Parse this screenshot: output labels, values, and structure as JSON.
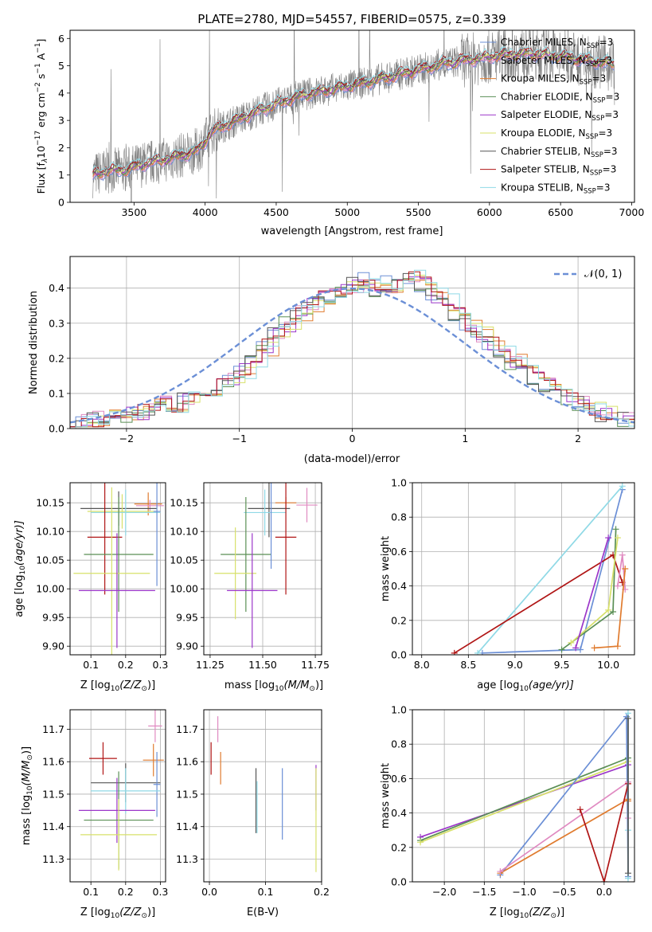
{
  "figure": {
    "title": "PLATE=2780, MJD=54557, FIBERID=0575, z=0.339"
  },
  "colors": {
    "Chabrier MILES": "#6b8fd6",
    "Salpeter MILES": "#e08ac1",
    "Kroupa MILES": "#e07b2e",
    "Chabrier ELODIE": "#5a8f55",
    "Salpeter ELODIE": "#9b36c9",
    "Kroupa ELODIE": "#d7e06a",
    "Chabrier STELIB": "#555555",
    "Salpeter STELIB": "#b01515",
    "Kroupa STELIB": "#8fd9e6",
    "data": "#7f7f7f",
    "gaussian": "#6b8fd6"
  },
  "chart_data": [
    {
      "id": "spectrum",
      "type": "line",
      "title": "PLATE=2780, MJD=54557, FIBERID=0575, z=0.339",
      "xlabel": "wavelength [Angstrom, rest frame]",
      "ylabel_main": "Flux [f",
      "ylabel_sub1": "λ",
      "ylabel_mid": "10",
      "ylabel_sup1": "−17",
      "ylabel_rest1": " erg cm",
      "ylabel_sup2": "−2",
      "ylabel_rest2": " s",
      "ylabel_sup3": "−1",
      "ylabel_rest3": " A",
      "ylabel_sup4": "−1",
      "ylabel_end": "]",
      "xlim": [
        3050,
        7020
      ],
      "ylim": [
        0,
        6.3
      ],
      "xticks": [
        3500,
        4000,
        4500,
        5000,
        5500,
        6000,
        6500,
        7000
      ],
      "yticks": [
        0,
        1,
        2,
        3,
        4,
        5,
        6
      ],
      "legend_position": "upper-right",
      "data_start": 3210,
      "data_end": 6880,
      "continuum_knots": {
        "x": [
          3210,
          3300,
          3450,
          3600,
          3750,
          3950,
          4050,
          4200,
          4350,
          4500,
          4700,
          4900,
          5100,
          5300,
          5500,
          5700,
          5900,
          6100,
          6300,
          6500,
          6700,
          6880
        ],
        "y": [
          1.0,
          1.15,
          1.2,
          1.45,
          1.6,
          1.9,
          2.6,
          2.95,
          3.3,
          3.6,
          3.95,
          4.15,
          4.35,
          4.6,
          4.85,
          5.1,
          5.25,
          5.4,
          5.45,
          5.35,
          5.2,
          5.05
        ]
      },
      "legend": [
        "Chabrier MILES, N",
        "Salpeter MILES, N",
        "Kroupa MILES, N",
        "Chabrier ELODIE, N",
        "Salpeter ELODIE, N",
        "Kroupa ELODIE, N",
        "Chabrier STELIB, N",
        "Salpeter STELIB, N",
        "Kroupa STELIB, N"
      ],
      "legend_sub": "SSP",
      "legend_tail": "=3",
      "series_names": [
        "Chabrier MILES",
        "Salpeter MILES",
        "Kroupa MILES",
        "Chabrier ELODIE",
        "Salpeter ELODIE",
        "Kroupa ELODIE",
        "Chabrier STELIB",
        "Salpeter STELIB",
        "Kroupa STELIB"
      ]
    },
    {
      "id": "residuals",
      "type": "step-histogram",
      "xlabel": "(data-model)/error",
      "ylabel": "Normed distribution",
      "xlim": [
        -2.5,
        2.5
      ],
      "ylim": [
        0,
        0.49
      ],
      "xticks": [
        -2,
        -1,
        0,
        1,
        2
      ],
      "yticks": [
        0.0,
        0.1,
        0.2,
        0.3,
        0.4
      ],
      "gaussian_label": "𝒩(0, 1)",
      "bin_width": 0.1,
      "bin_start": -2.5,
      "base_hist": [
        0.02,
        0.02,
        0.025,
        0.03,
        0.035,
        0.04,
        0.05,
        0.06,
        0.07,
        0.065,
        0.08,
        0.09,
        0.1,
        0.12,
        0.14,
        0.16,
        0.2,
        0.23,
        0.27,
        0.3,
        0.33,
        0.35,
        0.37,
        0.38,
        0.4,
        0.41,
        0.42,
        0.4,
        0.41,
        0.42,
        0.43,
        0.41,
        0.38,
        0.36,
        0.33,
        0.3,
        0.27,
        0.24,
        0.21,
        0.19,
        0.17,
        0.14,
        0.12,
        0.1,
        0.08,
        0.07,
        0.05,
        0.04,
        0.035,
        0.03
      ]
    },
    {
      "id": "age-vs-Z",
      "type": "errorbar",
      "xlabel": "Z [log",
      "xlabel_sub": "10",
      "xlabel_rest": "(Z/Z",
      "xlabel_sun": "⊙",
      "xlabel_end": ")]",
      "ylabel": "age  [log",
      "ylabel_sub": "10",
      "ylabel_rest": "(age/yr)]",
      "xlim": [
        0.04,
        0.315
      ],
      "ylim": [
        9.885,
        10.185
      ],
      "xticks": [
        0.1,
        0.2,
        0.3
      ],
      "yticks": [
        9.9,
        9.95,
        10.0,
        10.05,
        10.1,
        10.15
      ],
      "points": [
        {
          "series": "Kroupa MILES",
          "x": 0.265,
          "xerr": 0.04,
          "y": 10.148,
          "yerr": 0.02
        },
        {
          "series": "Salpeter MILES",
          "x": 0.27,
          "xerr": 0.04,
          "y": 10.145,
          "yerr": 0.01
        },
        {
          "series": "Chabrier STELIB",
          "x": 0.18,
          "xerr": 0.11,
          "y": 10.14,
          "yerr": 0.03
        },
        {
          "series": "Kroupa ELODIE",
          "x": 0.19,
          "xerr": 0.1,
          "y": 10.135,
          "yerr": 0.03
        },
        {
          "series": "Kroupa STELIB",
          "x": 0.2,
          "xerr": 0.1,
          "y": 10.133,
          "yerr": 0.04
        },
        {
          "series": "Chabrier MILES",
          "x": 0.29,
          "xerr": 0.01,
          "y": 10.135,
          "yerr": 0.13
        },
        {
          "series": "Salpeter STELIB",
          "x": 0.14,
          "xerr": 0.05,
          "y": 10.09,
          "yerr": 0.1
        },
        {
          "series": "Chabrier ELODIE",
          "x": 0.18,
          "xerr": 0.1,
          "y": 10.06,
          "yerr": 0.1
        },
        {
          "series": "Kroupa ELODIE",
          "x": 0.16,
          "xerr": 0.11,
          "y": 10.027,
          "yerr": 0.15
        },
        {
          "series": "Salpeter ELODIE",
          "x": 0.175,
          "xerr": 0.11,
          "y": 9.997,
          "yerr": 0.1
        }
      ]
    },
    {
      "id": "age-vs-mass",
      "type": "errorbar",
      "xlabel": "mass [log",
      "xlabel_sub": "10",
      "xlabel_rest": "(M/M",
      "xlabel_sun": "⊙",
      "xlabel_end": ")]",
      "xlim": [
        11.22,
        11.78
      ],
      "ylim": [
        9.885,
        10.185
      ],
      "xticks": [
        11.25,
        11.5,
        11.75
      ],
      "xticklabels": [
        "11.25",
        "11.50",
        "11.75"
      ],
      "yticks": [
        9.9,
        9.95,
        10.0,
        10.05,
        10.1,
        10.15
      ],
      "points": [
        {
          "series": "Salpeter MILES",
          "x": 11.71,
          "xerr": 0.05,
          "y": 10.146,
          "yerr": 0.03
        },
        {
          "series": "Kroupa MILES",
          "x": 11.61,
          "xerr": 0.05,
          "y": 10.15,
          "yerr": 0.01
        },
        {
          "series": "Chabrier STELIB",
          "x": 11.53,
          "xerr": 0.1,
          "y": 10.14,
          "yerr": 0.05
        },
        {
          "series": "Kroupa STELIB",
          "x": 11.51,
          "xerr": 0.1,
          "y": 10.133,
          "yerr": 0.04
        },
        {
          "series": "Salpeter STELIB",
          "x": 11.61,
          "xerr": 0.05,
          "y": 10.09,
          "yerr": 0.1
        },
        {
          "series": "Chabrier ELODIE",
          "x": 11.42,
          "xerr": 0.12,
          "y": 10.06,
          "yerr": 0.1
        },
        {
          "series": "Kroupa ELODIE",
          "x": 11.37,
          "xerr": 0.1,
          "y": 10.027,
          "yerr": 0.08
        },
        {
          "series": "Salpeter ELODIE",
          "x": 11.45,
          "xerr": 0.12,
          "y": 9.997,
          "yerr": 0.1
        },
        {
          "series": "Chabrier MILES",
          "x": 11.54,
          "xerr": 0.0,
          "y": 10.135,
          "yerr": 0.1
        }
      ]
    },
    {
      "id": "weight-vs-age",
      "type": "line",
      "xlabel": "age  [log",
      "xlabel_sub": "10",
      "xlabel_rest": "(age/yr)]",
      "ylabel": "mass weight",
      "xlim": [
        7.9,
        10.28
      ],
      "ylim": [
        0,
        1.0
      ],
      "xticks": [
        8.0,
        8.5,
        9.0,
        9.5,
        10.0
      ],
      "yticks": [
        0.0,
        0.2,
        0.4,
        0.6,
        0.8,
        1.0
      ],
      "series": [
        {
          "name": "Chabrier MILES",
          "x": [
            8.65,
            9.7,
            10.15
          ],
          "y": [
            0.01,
            0.03,
            0.96
          ]
        },
        {
          "name": "Kroupa STELIB",
          "x": [
            8.6,
            10.15
          ],
          "y": [
            0.01,
            0.98
          ]
        },
        {
          "name": "Salpeter STELIB",
          "x": [
            8.35,
            10.05,
            10.15
          ],
          "y": [
            0.01,
            0.58,
            0.42
          ]
        },
        {
          "name": "Chabrier ELODIE",
          "x": [
            9.5,
            10.05,
            10.08
          ],
          "y": [
            0.03,
            0.25,
            0.73
          ]
        },
        {
          "name": "Kroupa ELODIE",
          "x": [
            9.6,
            10.0,
            10.1
          ],
          "y": [
            0.07,
            0.26,
            0.68
          ]
        },
        {
          "name": "Salpeter ELODIE",
          "x": [
            9.65,
            10.0
          ],
          "y": [
            0.04,
            0.68
          ]
        },
        {
          "name": "Salpeter MILES",
          "x": [
            10.1,
            10.15,
            10.18
          ],
          "y": [
            0.4,
            0.58,
            0.38
          ]
        },
        {
          "name": "Kroupa MILES",
          "x": [
            9.85,
            10.1,
            10.18
          ],
          "y": [
            0.04,
            0.05,
            0.5
          ]
        }
      ]
    },
    {
      "id": "mass-vs-Z",
      "type": "errorbar",
      "xlabel": "Z [log",
      "xlabel_sub": "10",
      "xlabel_rest": "(Z/Z",
      "xlabel_sun": "⊙",
      "xlabel_end": ")]",
      "ylabel": "mass [log",
      "ylabel_sub": "10",
      "ylabel_rest": "(M/M",
      "ylabel_sun": "⊙",
      "ylabel_end": ")]",
      "xlim": [
        0.04,
        0.315
      ],
      "ylim": [
        11.23,
        11.76
      ],
      "xticks": [
        0.1,
        0.2,
        0.3
      ],
      "yticks": [
        11.3,
        11.4,
        11.5,
        11.6,
        11.7
      ],
      "points": [
        {
          "series": "Salpeter MILES",
          "x": 0.285,
          "xerr": 0.02,
          "y": 11.71,
          "yerr": 0.05
        },
        {
          "series": "Salpeter STELIB",
          "x": 0.135,
          "xerr": 0.04,
          "y": 11.61,
          "yerr": 0.05
        },
        {
          "series": "Kroupa MILES",
          "x": 0.28,
          "xerr": 0.03,
          "y": 11.605,
          "yerr": 0.05
        },
        {
          "series": "Chabrier STELIB",
          "x": 0.2,
          "xerr": 0.1,
          "y": 11.535,
          "yerr": 0.06
        },
        {
          "series": "Chabrier MILES",
          "x": 0.29,
          "xerr": 0.01,
          "y": 11.53,
          "yerr": 0.1
        },
        {
          "series": "Kroupa STELIB",
          "x": 0.2,
          "xerr": 0.1,
          "y": 11.51,
          "yerr": 0.07
        },
        {
          "series": "Salpeter ELODIE",
          "x": 0.175,
          "xerr": 0.11,
          "y": 11.45,
          "yerr": 0.1
        },
        {
          "series": "Chabrier ELODIE",
          "x": 0.18,
          "xerr": 0.1,
          "y": 11.42,
          "yerr": 0.15
        },
        {
          "series": "Kroupa ELODIE",
          "x": 0.18,
          "xerr": 0.11,
          "y": 11.375,
          "yerr": 0.11
        }
      ]
    },
    {
      "id": "mass-vs-EBV",
      "type": "errorbar",
      "xlabel": "E(B-V)",
      "xlim": [
        -0.01,
        0.2
      ],
      "ylim": [
        11.23,
        11.76
      ],
      "xticks": [
        0.0,
        0.1,
        0.2
      ],
      "xticklabels": [
        "0.0",
        "0.1",
        "0.2"
      ],
      "yticks": [
        11.3,
        11.4,
        11.5,
        11.6,
        11.7
      ],
      "points": [
        {
          "series": "Salpeter MILES",
          "x": 0.015,
          "xerr": 0.0,
          "y": 11.7,
          "yerr": 0.04
        },
        {
          "series": "Salpeter STELIB",
          "x": 0.003,
          "xerr": 0.0,
          "y": 11.61,
          "yerr": 0.05
        },
        {
          "series": "Kroupa MILES",
          "x": 0.02,
          "xerr": 0.0,
          "y": 11.58,
          "yerr": 0.05
        },
        {
          "series": "Chabrier STELIB",
          "x": 0.083,
          "xerr": 0.0,
          "y": 11.48,
          "yerr": 0.1
        },
        {
          "series": "Kroupa STELIB",
          "x": 0.085,
          "xerr": 0.0,
          "y": 11.46,
          "yerr": 0.08
        },
        {
          "series": "Chabrier MILES",
          "x": 0.13,
          "xerr": 0.0,
          "y": 11.47,
          "yerr": 0.11
        },
        {
          "series": "Salpeter ELODIE",
          "x": 0.19,
          "xerr": 0.0,
          "y": 11.52,
          "yerr": 0.07
        },
        {
          "series": "Kroupa ELODIE",
          "x": 0.19,
          "xerr": 0.0,
          "y": 11.42,
          "yerr": 0.16
        }
      ]
    },
    {
      "id": "weight-vs-Z",
      "type": "line",
      "xlabel": "Z [log",
      "xlabel_sub": "10",
      "xlabel_rest": "(Z/Z",
      "xlabel_sun": "⊙",
      "xlabel_end": ")]",
      "ylabel": "mass weight",
      "xlim": [
        -2.4,
        0.38
      ],
      "ylim": [
        0,
        1.0
      ],
      "xticks": [
        -2.0,
        -1.5,
        -1.0,
        -0.5,
        0.0
      ],
      "yticks": [
        0.0,
        0.2,
        0.4,
        0.6,
        0.8,
        1.0
      ],
      "series": [
        {
          "name": "Salpeter ELODIE",
          "x": [
            -2.3,
            0.3
          ],
          "y": [
            0.26,
            0.68
          ]
        },
        {
          "name": "Chabrier ELODIE",
          "x": [
            -2.3,
            0.3
          ],
          "y": [
            0.24,
            0.72
          ]
        },
        {
          "name": "Kroupa ELODIE",
          "x": [
            -2.3,
            0.3
          ],
          "y": [
            0.23,
            0.7
          ]
        },
        {
          "name": "Chabrier MILES",
          "x": [
            -1.3,
            0.28,
            0.3
          ],
          "y": [
            0.04,
            0.96,
            0.03
          ]
        },
        {
          "name": "Kroupa MILES",
          "x": [
            -1.3,
            0.3,
            0.3
          ],
          "y": [
            0.05,
            0.48,
            0.47
          ]
        },
        {
          "name": "Salpeter MILES",
          "x": [
            -1.3,
            0.3,
            0.3
          ],
          "y": [
            0.06,
            0.58,
            0.37
          ]
        },
        {
          "name": "Salpeter STELIB",
          "x": [
            -0.3,
            0.0,
            0.3
          ],
          "y": [
            0.42,
            0.0,
            0.57
          ]
        },
        {
          "name": "Kroupa STELIB",
          "x": [
            0.3,
            0.3,
            0.3
          ],
          "y": [
            0.98,
            0.02,
            0.3
          ]
        },
        {
          "name": "Chabrier STELIB",
          "x": [
            0.3,
            0.3
          ],
          "y": [
            0.95,
            0.05
          ]
        }
      ]
    }
  ]
}
